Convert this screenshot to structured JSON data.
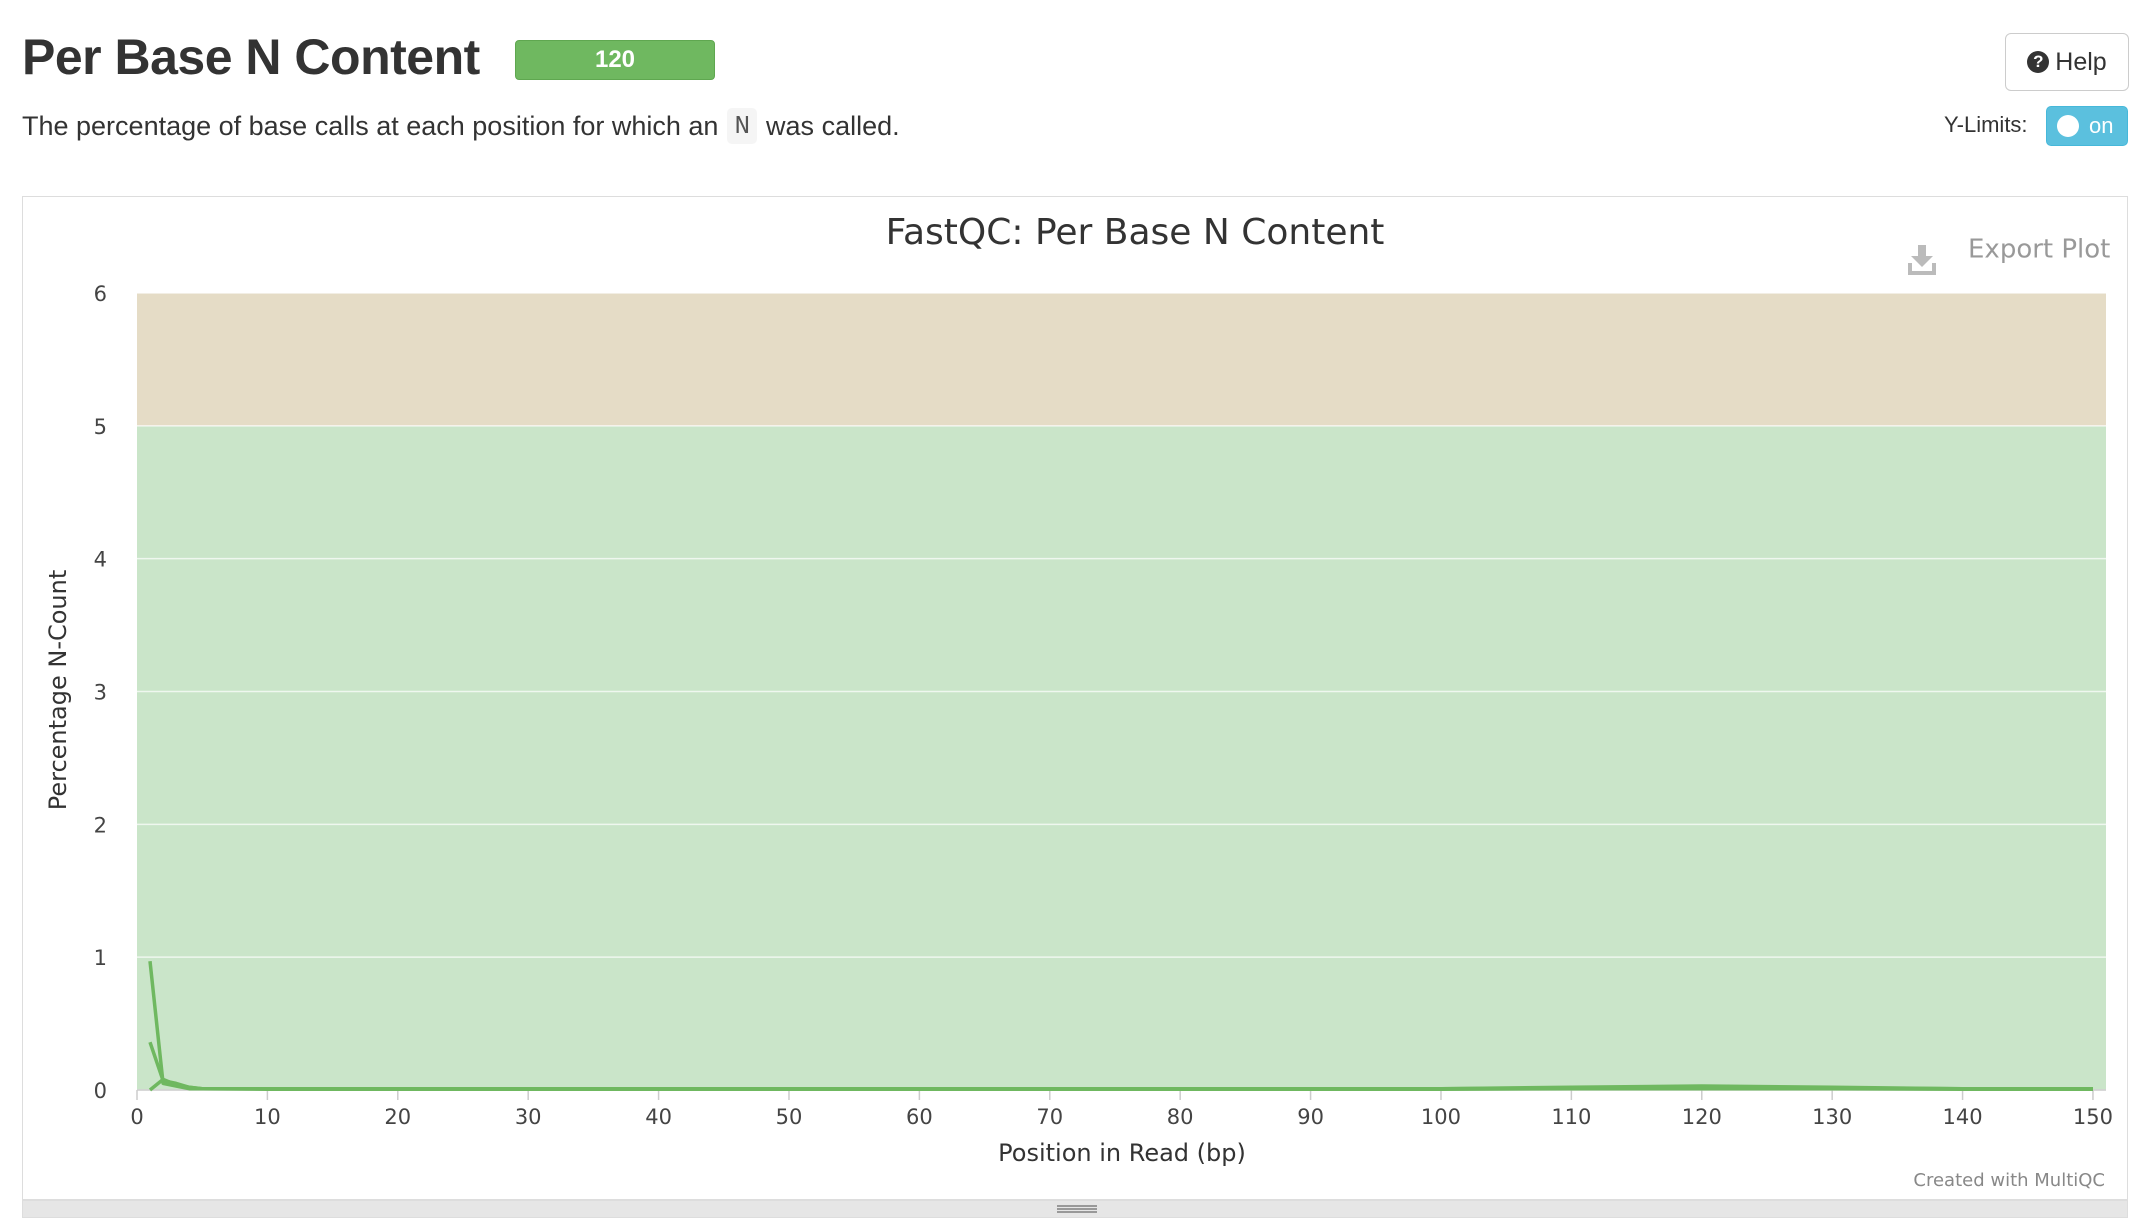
{
  "header": {
    "title": "Per Base N Content",
    "badge": "120",
    "description_before": "The percentage of base calls at each position for which an",
    "description_code": "N",
    "description_after": "was called."
  },
  "help_button": {
    "label": "Help",
    "icon": "question-circle-icon"
  },
  "ylimits": {
    "label": "Y-Limits:",
    "toggle_label": "on"
  },
  "export_button": {
    "label": "Export Plot",
    "icon": "download-icon"
  },
  "credit": "Created with MultiQC",
  "colors": {
    "badge": "#6fb860",
    "toggle": "#5bc0de",
    "band_pass": "#cae5c9",
    "band_warn": "#e5dcc6",
    "line": "#6fb860"
  },
  "chart_data": {
    "type": "line",
    "title": "FastQC: Per Base N Content",
    "xlabel": "Position in Read (bp)",
    "ylabel": "Percentage N-Count",
    "xlim": [
      0,
      151
    ],
    "ylim": [
      0,
      6
    ],
    "xticks": [
      0,
      10,
      20,
      30,
      40,
      50,
      60,
      70,
      80,
      90,
      100,
      110,
      120,
      130,
      140,
      150
    ],
    "yticks": [
      0,
      1,
      2,
      3,
      4,
      5,
      6
    ],
    "grid": true,
    "bands": [
      {
        "from": 0,
        "to": 5,
        "color": "#cae5c9"
      },
      {
        "from": 5,
        "to": 6,
        "color": "#e5dcc6"
      }
    ],
    "series": [
      {
        "x": [
          1,
          2,
          3,
          4,
          5,
          10,
          20,
          40,
          60,
          80,
          100,
          110,
          120,
          130,
          140,
          150
        ],
        "values": [
          0.97,
          0.05,
          0.03,
          0.01,
          0.01,
          0.01,
          0.01,
          0.01,
          0.01,
          0.01,
          0.01,
          0.015,
          0.02,
          0.015,
          0.01,
          0.01
        ]
      },
      {
        "x": [
          1,
          2,
          3,
          4,
          5,
          10,
          20,
          40,
          60,
          80,
          100,
          110,
          120,
          130,
          140,
          150
        ],
        "values": [
          0.36,
          0.07,
          0.05,
          0.02,
          0.01,
          0.01,
          0.01,
          0.01,
          0.01,
          0.01,
          0.01,
          0.02,
          0.03,
          0.02,
          0.01,
          0.01
        ]
      },
      {
        "x": [
          1,
          2,
          3,
          4,
          5,
          10,
          20,
          40,
          60,
          80,
          100,
          110,
          120,
          130,
          140,
          150
        ],
        "values": [
          0.0,
          0.08,
          0.04,
          0.02,
          0.01,
          0.005,
          0.005,
          0.005,
          0.005,
          0.005,
          0.005,
          0.01,
          0.01,
          0.01,
          0.005,
          0.005
        ]
      }
    ]
  }
}
